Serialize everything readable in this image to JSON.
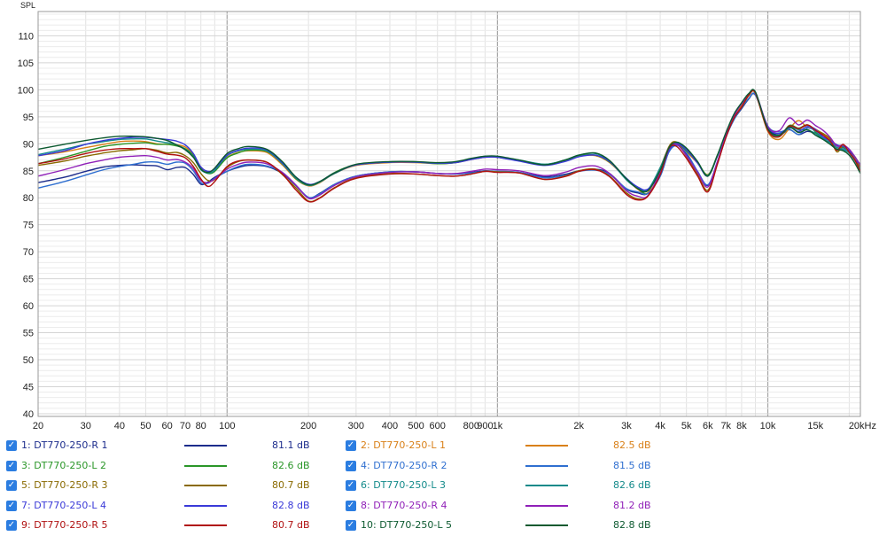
{
  "chart_data": {
    "type": "line",
    "ylabel": "SPL",
    "x_scale": "log",
    "xlim": [
      20,
      22000
    ],
    "ylim": [
      39.5,
      114.5
    ],
    "y_ticks": [
      40,
      45,
      50,
      55,
      60,
      65,
      70,
      75,
      80,
      85,
      90,
      95,
      100,
      105,
      110
    ],
    "x_ticks": [
      {
        "value": 20,
        "label": "20"
      },
      {
        "value": 30,
        "label": "30"
      },
      {
        "value": 40,
        "label": "40"
      },
      {
        "value": 50,
        "label": "50"
      },
      {
        "value": 60,
        "label": "60"
      },
      {
        "value": 70,
        "label": "70"
      },
      {
        "value": 80,
        "label": "80"
      },
      {
        "value": 100,
        "label": "100"
      },
      {
        "value": 200,
        "label": "200"
      },
      {
        "value": 300,
        "label": "300"
      },
      {
        "value": 400,
        "label": "400"
      },
      {
        "value": 500,
        "label": "500"
      },
      {
        "value": 600,
        "label": "600"
      },
      {
        "value": 800,
        "label": "800"
      },
      {
        "value": 900,
        "label": "900"
      },
      {
        "value": 1000,
        "label": "1k"
      },
      {
        "value": 2000,
        "label": "2k"
      },
      {
        "value": 3000,
        "label": "3k"
      },
      {
        "value": 4000,
        "label": "4k"
      },
      {
        "value": 5000,
        "label": "5k"
      },
      {
        "value": 6000,
        "label": "6k"
      },
      {
        "value": 7000,
        "label": "7k"
      },
      {
        "value": 8000,
        "label": "8k"
      },
      {
        "value": 10000,
        "label": "10k"
      },
      {
        "value": 15000,
        "label": "15k"
      },
      {
        "value": 20000,
        "label": "20kHz"
      }
    ],
    "grid": true,
    "legend_position": "bottom",
    "x": [
      20,
      25,
      30,
      35,
      40,
      45,
      50,
      55,
      60,
      65,
      70,
      75,
      80,
      85,
      90,
      100,
      110,
      120,
      140,
      160,
      180,
      200,
      220,
      250,
      300,
      400,
      500,
      600,
      700,
      800,
      900,
      1000,
      1200,
      1500,
      1800,
      2000,
      2300,
      2600,
      3000,
      3300,
      3600,
      4000,
      4300,
      4600,
      5000,
      5500,
      6000,
      6500,
      7000,
      7500,
      8000,
      8500,
      9000,
      10000,
      11000,
      12000,
      13000,
      14000,
      15000,
      16000,
      17000,
      18000,
      19000,
      20000,
      21000,
      22000
    ],
    "series": [
      {
        "name": "1: DT770-250-R 1",
        "color": "#1c2c8c",
        "level": "81.1 dB",
        "values": [
          82.8,
          83.8,
          84.9,
          85.7,
          86.0,
          86.1,
          86.0,
          85.9,
          85.2,
          85.6,
          85.6,
          84.3,
          82.5,
          82.9,
          83.8,
          84.9,
          85.6,
          86.0,
          85.8,
          84.5,
          82.2,
          80.0,
          80.8,
          82.5,
          84.0,
          84.8,
          84.8,
          84.5,
          84.4,
          84.7,
          85.0,
          84.9,
          84.7,
          83.9,
          84.4,
          85.0,
          85.3,
          84.5,
          81.6,
          80.9,
          80.8,
          84.0,
          88.5,
          89.8,
          88.1,
          84.7,
          82.3,
          86.5,
          91.2,
          94.5,
          96.5,
          98.3,
          99.0,
          93.0,
          91.6,
          92.6,
          91.7,
          92.3,
          92.0,
          91.9,
          90.2,
          88.9,
          89.3,
          88.3,
          87.0,
          85.2
        ]
      },
      {
        "name": "2: DT770-250-L 1",
        "color": "#d98018",
        "level": "82.5 dB",
        "values": [
          87.8,
          88.5,
          89.3,
          89.9,
          90.4,
          90.5,
          90.4,
          90.0,
          89.9,
          89.8,
          89.4,
          88.0,
          85.7,
          84.8,
          85.0,
          87.5,
          88.4,
          88.7,
          88.4,
          86.1,
          83.4,
          82.2,
          82.8,
          84.5,
          86.0,
          86.5,
          86.5,
          86.3,
          86.5,
          87.1,
          87.5,
          87.5,
          86.9,
          86.1,
          86.9,
          87.7,
          87.8,
          86.5,
          83.5,
          81.6,
          80.9,
          85.6,
          89.3,
          90.1,
          88.5,
          86.4,
          84.3,
          87.6,
          91.7,
          95.3,
          97.1,
          99.0,
          99.3,
          92.3,
          90.8,
          92.8,
          94.3,
          93.0,
          92.7,
          91.8,
          90.8,
          89.3,
          89.5,
          88.5,
          87.3,
          86.1
        ]
      },
      {
        "name": "3: DT770-250-L 2",
        "color": "#2a9628",
        "level": "82.6 dB",
        "values": [
          86.3,
          87.5,
          88.6,
          89.5,
          89.9,
          90.1,
          90.2,
          89.9,
          89.9,
          89.6,
          89.1,
          87.8,
          85.4,
          84.5,
          84.9,
          87.4,
          88.3,
          88.8,
          88.6,
          86.4,
          83.5,
          82.3,
          82.9,
          84.7,
          86.1,
          86.6,
          86.6,
          86.3,
          86.5,
          87.2,
          87.6,
          87.5,
          86.9,
          86.2,
          87.0,
          87.8,
          87.9,
          86.6,
          83.6,
          81.8,
          80.8,
          84.2,
          88.5,
          90.0,
          88.7,
          86.6,
          84.2,
          87.8,
          91.9,
          95.4,
          97.4,
          99.2,
          99.5,
          92.5,
          91.3,
          93.4,
          92.9,
          93.5,
          92.2,
          91.0,
          90.6,
          89.8,
          89.3,
          88.7,
          87.6,
          86.0
        ]
      },
      {
        "name": "4: DT770-250-R 2",
        "color": "#2f6fd0",
        "level": "81.5 dB",
        "values": [
          81.8,
          83.0,
          84.2,
          85.2,
          85.8,
          86.2,
          86.6,
          86.6,
          86.2,
          86.6,
          86.4,
          85.0,
          82.8,
          82.7,
          83.6,
          84.9,
          85.8,
          86.2,
          85.9,
          84.7,
          82.3,
          80.1,
          80.7,
          82.5,
          84.0,
          84.8,
          84.8,
          84.5,
          84.4,
          84.6,
          84.9,
          84.9,
          84.7,
          83.7,
          84.2,
          84.9,
          85.1,
          84.3,
          81.7,
          81.1,
          80.8,
          84.0,
          88.4,
          89.7,
          88.3,
          84.9,
          82.4,
          86.5,
          91.3,
          94.5,
          96.7,
          98.4,
          99.1,
          93.3,
          92.2,
          92.7,
          91.7,
          92.9,
          92.4,
          91.2,
          90.5,
          89.6,
          89.0,
          88.5,
          87.1,
          85.5
        ]
      },
      {
        "name": "5: DT770-250-R 3",
        "color": "#8a6a00",
        "level": "80.7 dB",
        "values": [
          86.0,
          86.8,
          87.7,
          88.3,
          88.7,
          88.9,
          89.1,
          88.8,
          88.3,
          88.4,
          87.8,
          86.5,
          84.5,
          83.2,
          83.4,
          85.6,
          86.7,
          87.0,
          86.6,
          84.3,
          81.8,
          79.4,
          80.0,
          81.9,
          83.7,
          84.5,
          84.4,
          84.1,
          84.0,
          84.4,
          84.9,
          84.8,
          84.6,
          83.4,
          84.1,
          85.0,
          85.3,
          84.0,
          80.9,
          79.8,
          80.3,
          84.6,
          89.4,
          90.3,
          87.7,
          84.3,
          81.4,
          86.2,
          91.4,
          94.8,
          96.8,
          98.9,
          99.4,
          92.7,
          91.5,
          93.2,
          92.7,
          93.5,
          92.6,
          91.9,
          90.9,
          88.5,
          89.6,
          88.4,
          87.0,
          85.7
        ]
      },
      {
        "name": "6: DT770-250-L 3",
        "color": "#138a8a",
        "level": "82.6 dB",
        "values": [
          88.0,
          89.0,
          89.9,
          90.4,
          90.8,
          90.9,
          90.9,
          90.5,
          90.2,
          89.8,
          89.0,
          87.6,
          85.2,
          84.6,
          85.1,
          87.8,
          88.7,
          89.0,
          88.7,
          86.3,
          83.6,
          82.3,
          82.9,
          84.5,
          86.1,
          86.6,
          86.6,
          86.4,
          86.6,
          87.2,
          87.7,
          87.6,
          87.0,
          86.2,
          87.1,
          87.9,
          88.2,
          86.8,
          83.3,
          81.8,
          81.5,
          85.6,
          89.1,
          90.2,
          88.9,
          86.5,
          84.1,
          87.6,
          91.9,
          95.5,
          97.5,
          99.2,
          99.5,
          92.7,
          91.4,
          93.0,
          92.6,
          92.6,
          91.9,
          90.9,
          90.2,
          89.3,
          88.9,
          88.3,
          86.9,
          85.1
        ]
      },
      {
        "name": "7: DT770-250-L 4",
        "color": "#3a3ad8",
        "level": "82.8 dB",
        "values": [
          87.8,
          88.7,
          89.9,
          90.6,
          91.0,
          91.2,
          91.2,
          91.0,
          90.8,
          90.5,
          89.8,
          88.2,
          85.7,
          84.9,
          85.4,
          87.9,
          88.8,
          89.2,
          88.9,
          86.5,
          83.8,
          82.5,
          83.0,
          84.6,
          86.1,
          86.6,
          86.6,
          86.4,
          86.5,
          87.1,
          87.5,
          87.5,
          86.8,
          86.0,
          86.8,
          87.6,
          87.9,
          86.7,
          83.6,
          82.0,
          81.6,
          84.6,
          88.7,
          90.0,
          88.9,
          86.4,
          84.0,
          87.7,
          91.9,
          95.3,
          97.4,
          99.2,
          99.5,
          93.2,
          91.9,
          93.0,
          92.3,
          93.2,
          92.7,
          91.3,
          90.6,
          89.8,
          89.5,
          88.7,
          87.0,
          86.3
        ]
      },
      {
        "name": "8: DT770-250-R 4",
        "color": "#9020b8",
        "level": "81.2 dB",
        "values": [
          84.0,
          85.2,
          86.3,
          87.0,
          87.5,
          87.7,
          87.8,
          87.5,
          87.0,
          87.1,
          86.6,
          85.4,
          83.2,
          82.8,
          83.5,
          85.3,
          86.2,
          86.6,
          86.3,
          84.7,
          82.3,
          79.9,
          80.5,
          82.3,
          83.9,
          84.7,
          84.8,
          84.5,
          84.5,
          84.9,
          85.3,
          85.2,
          85.0,
          84.1,
          84.8,
          85.6,
          85.9,
          84.5,
          81.3,
          80.3,
          80.4,
          84.8,
          89.2,
          89.9,
          87.8,
          84.7,
          82.0,
          86.6,
          91.5,
          95.1,
          97.5,
          99.1,
          99.5,
          93.2,
          92.4,
          94.8,
          93.5,
          94.4,
          93.4,
          92.5,
          91.2,
          89.6,
          89.8,
          89.0,
          87.6,
          86.0
        ]
      },
      {
        "name": "9: DT770-250-R 5",
        "color": "#b01010",
        "level": "80.7 dB",
        "values": [
          86.3,
          87.2,
          88.2,
          88.8,
          89.1,
          89.1,
          89.1,
          88.6,
          88.1,
          87.9,
          87.4,
          85.8,
          83.5,
          82.1,
          83.0,
          85.8,
          86.8,
          87.0,
          86.6,
          84.4,
          81.4,
          79.3,
          79.9,
          81.8,
          83.6,
          84.4,
          84.4,
          84.1,
          84.0,
          84.4,
          84.9,
          84.7,
          84.6,
          83.4,
          84.0,
          84.9,
          85.2,
          83.9,
          80.6,
          79.6,
          80.3,
          84.3,
          89.1,
          89.5,
          87.3,
          84.0,
          81.1,
          86.1,
          91.2,
          94.8,
          96.8,
          99.0,
          99.4,
          92.5,
          91.3,
          93.3,
          92.8,
          93.5,
          92.5,
          91.6,
          90.5,
          88.8,
          89.9,
          88.4,
          87.0,
          84.8
        ]
      },
      {
        "name": "10: DT770-250-L 5",
        "color": "#0d5a30",
        "level": "82.8 dB",
        "values": [
          89.0,
          89.9,
          90.6,
          91.1,
          91.4,
          91.4,
          91.3,
          91.0,
          90.6,
          89.8,
          88.9,
          87.5,
          85.3,
          84.7,
          85.5,
          88.2,
          89.1,
          89.5,
          89.0,
          86.7,
          83.8,
          82.4,
          83.0,
          84.6,
          86.2,
          86.7,
          86.7,
          86.5,
          86.7,
          87.3,
          87.7,
          87.7,
          87.0,
          86.1,
          87.1,
          87.9,
          88.3,
          86.9,
          83.5,
          81.7,
          81.3,
          85.1,
          89.2,
          90.3,
          89.2,
          86.7,
          84.0,
          87.8,
          92.1,
          95.5,
          97.6,
          99.3,
          99.6,
          92.8,
          91.6,
          93.1,
          92.1,
          92.6,
          91.6,
          90.8,
          89.9,
          89.0,
          88.7,
          87.9,
          86.4,
          84.5
        ]
      }
    ]
  }
}
